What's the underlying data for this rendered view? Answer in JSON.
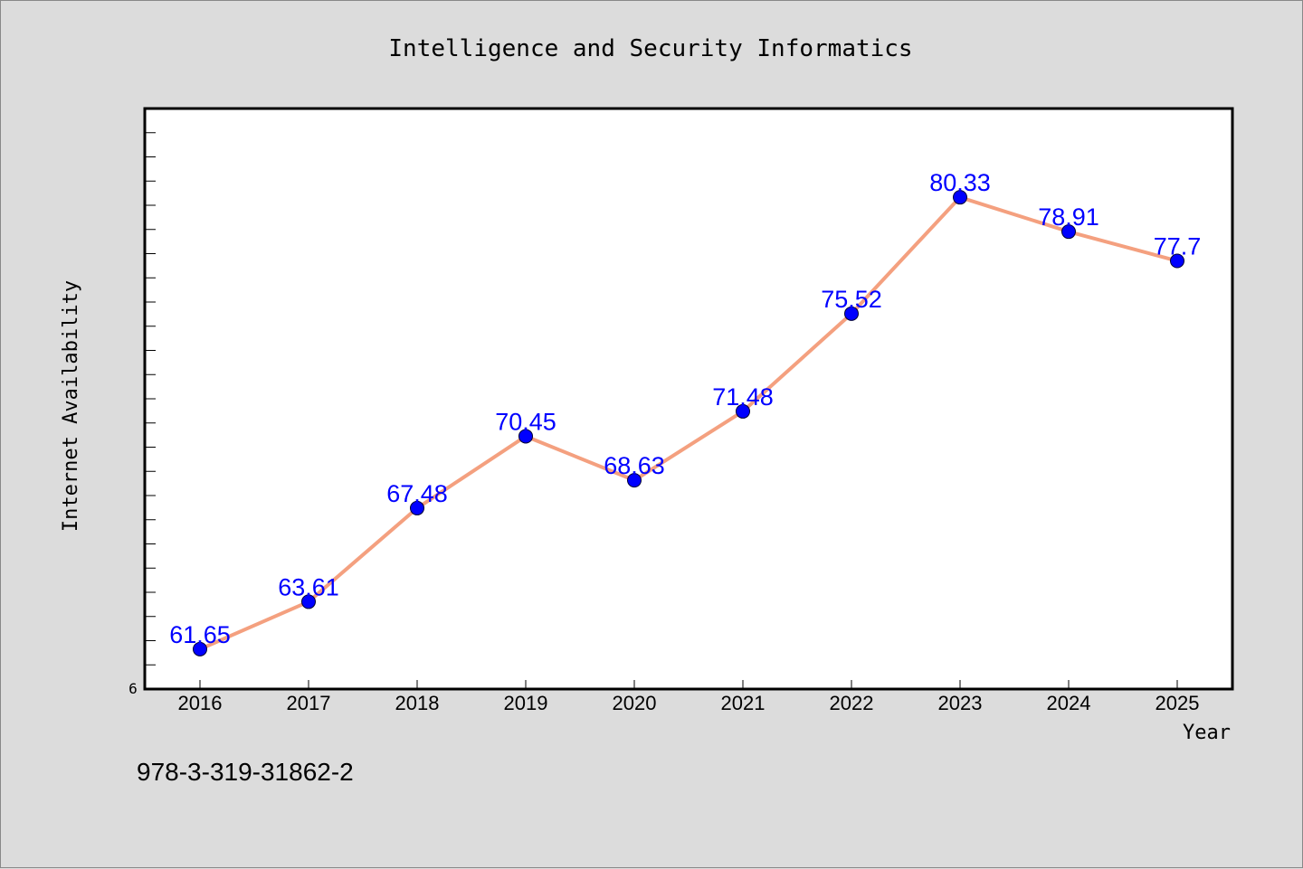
{
  "chart_data": {
    "type": "line",
    "title": "Intelligence and Security Informatics",
    "xlabel": "Year",
    "ylabel": "Internet Availability",
    "categories": [
      "2016",
      "2017",
      "2018",
      "2019",
      "2020",
      "2021",
      "2022",
      "2023",
      "2024",
      "2025"
    ],
    "values": [
      61.65,
      63.61,
      67.48,
      70.45,
      68.63,
      71.48,
      75.52,
      80.33,
      78.91,
      77.7
    ],
    "data_labels": [
      "61.65",
      "63.61",
      "67.48",
      "70.45",
      "68.63",
      "71.48",
      "75.52",
      "80.33",
      "78.91",
      "77.7"
    ],
    "y_tick_label": "6",
    "ylim": [
      60,
      84
    ],
    "y_minor_step": 1,
    "grid": false,
    "legend": "none",
    "colors": {
      "line": "#f4a07f",
      "marker": "#0000ff",
      "data_label": "#0000ff",
      "plot_background": "#ffffff",
      "page_background": "#dcdcdc"
    }
  },
  "footer": {
    "isbn": "978-3-319-31862-2"
  }
}
